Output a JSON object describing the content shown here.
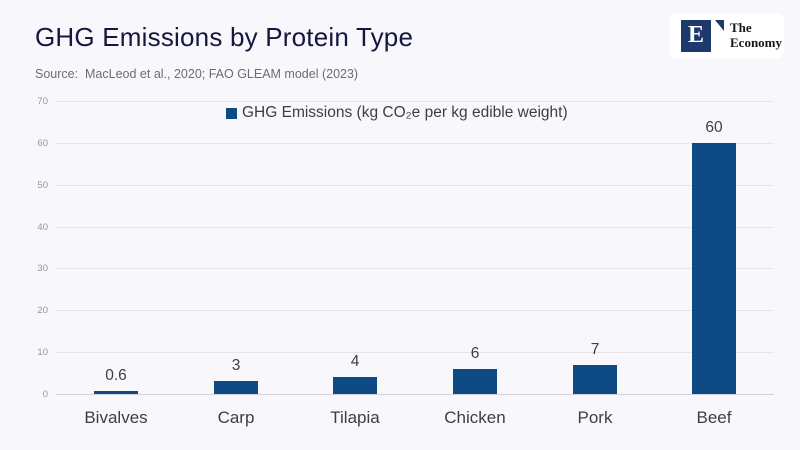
{
  "header": {
    "title": "GHG Emissions by Protein Type"
  },
  "source": {
    "label": "Source:  MacLeod et al., 2020; FAO GLEAM model (2023)"
  },
  "brand": {
    "initial": "E",
    "name_line1": "The",
    "name_line2": "Economy"
  },
  "legend": {
    "label": "GHG Emissions (kg CO₂e per kg edible weight)"
  },
  "colors": {
    "bar": "#0e4b84",
    "title": "#16163f",
    "background": "#f8f8fc",
    "logo_navy": "#1e3a6d",
    "gridline": "#e3e6eb"
  },
  "chart_data": {
    "type": "bar",
    "title": "GHG Emissions by Protein Type",
    "categories": [
      "Bivalves",
      "Carp",
      "Tilapia",
      "Chicken",
      "Pork",
      "Beef"
    ],
    "values": [
      0.6,
      3,
      4,
      6,
      7,
      60
    ],
    "value_labels": [
      "0.6",
      "3",
      "4",
      "6",
      "7",
      "60"
    ],
    "legend": "GHG Emissions (kg CO₂e per kg edible weight)",
    "xlabel": "",
    "ylabel": "",
    "ylim": [
      0,
      70
    ],
    "ytick_step": 10,
    "grid": true,
    "legend_position": "top-center",
    "source": "MacLeod et al., 2020; FAO GLEAM model (2023)"
  }
}
